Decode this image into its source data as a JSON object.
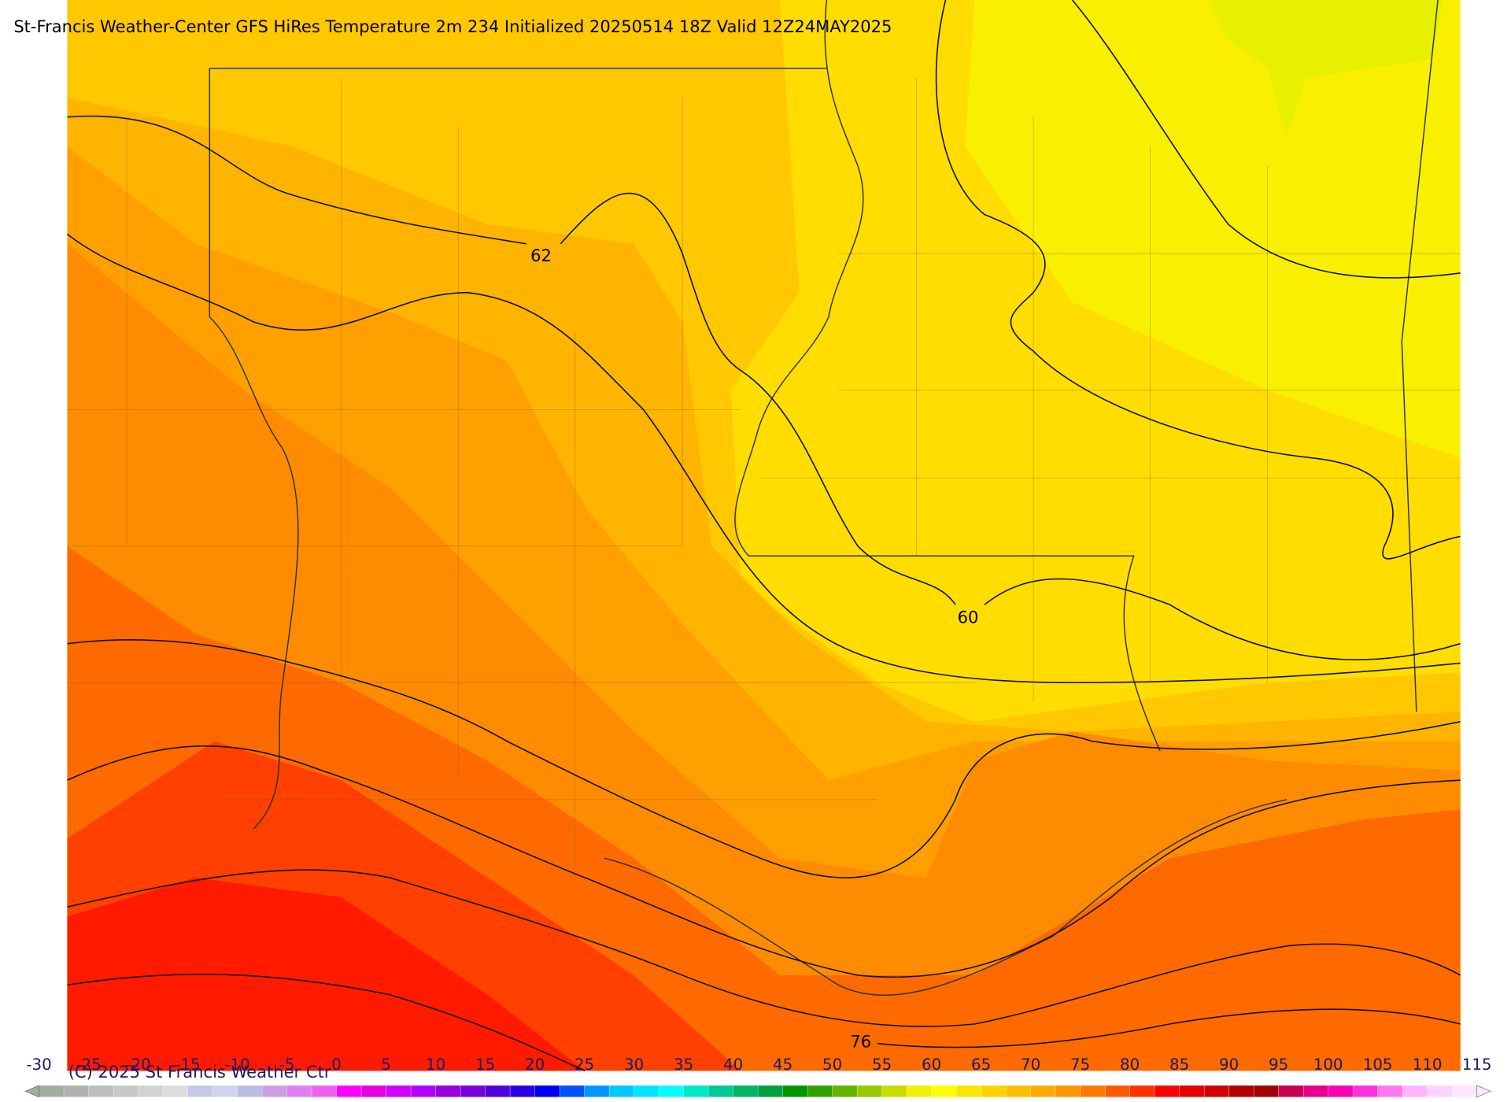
{
  "title": "St-Francis Weather-Center GFS HiRes Temperature 2m  234 Initialized 20250514 18Z Valid 12Z24MAY2025",
  "contour_labels": [
    "62",
    "60",
    "76"
  ],
  "copyright": "(C) 2025 St Francis Weather Ctr",
  "colorbar": {
    "ticks": [
      -30,
      -25,
      -20,
      -15,
      -10,
      -5,
      0,
      5,
      10,
      15,
      20,
      25,
      30,
      35,
      40,
      45,
      50,
      55,
      60,
      65,
      70,
      75,
      80,
      85,
      90,
      95,
      100,
      105,
      110,
      115
    ],
    "colors": [
      "#9fb09f",
      "#b0b0b0",
      "#bdbdbd",
      "#c8c8c8",
      "#d2d2d2",
      "#dcdcdc",
      "#c8c8e6",
      "#d2d2f0",
      "#bcbce0",
      "#c8a0e0",
      "#e080f0",
      "#f060f0",
      "#ff00ff",
      "#e600e6",
      "#d200ff",
      "#b400ff",
      "#9600e0",
      "#7800d8",
      "#5000dc",
      "#2800e6",
      "#0000ff",
      "#0050ff",
      "#0096ff",
      "#00c8ff",
      "#00e6ff",
      "#00ffff",
      "#00e6c8",
      "#00c896",
      "#00b464",
      "#00a03c",
      "#009600",
      "#32a000",
      "#64b400",
      "#96c800",
      "#c8dc00",
      "#f0f000",
      "#ffff00",
      "#ffe600",
      "#ffd200",
      "#ffbe00",
      "#ffaa00",
      "#ff9600",
      "#ff7800",
      "#ff5a00",
      "#ff3200",
      "#ff0000",
      "#e60000",
      "#d20000",
      "#b40000",
      "#a00000",
      "#c80050",
      "#e6008c",
      "#ff00b4",
      "#ff32dc",
      "#ff78f0",
      "#ffb4ff",
      "#ffd2ff",
      "#ffe6ff"
    ]
  }
}
